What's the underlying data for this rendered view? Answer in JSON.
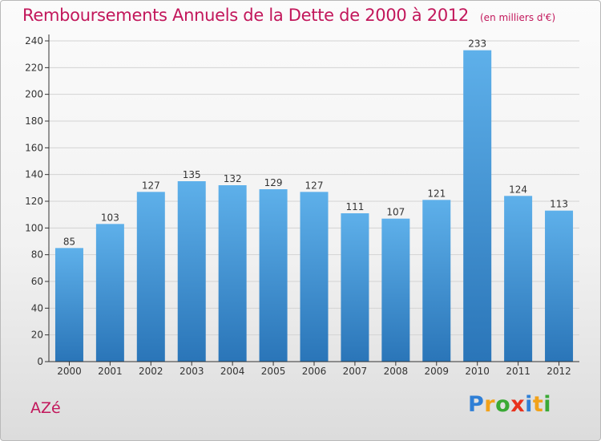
{
  "title": "Remboursements Annuels de la Dette de 2000 à 2012",
  "unit": "(en milliers d'€)",
  "town": "AZé",
  "logo": {
    "letters": [
      {
        "char": "P",
        "color": "#2f7fd6"
      },
      {
        "char": "r",
        "color": "#f2a21a"
      },
      {
        "char": "o",
        "color": "#3aa935"
      },
      {
        "char": "x",
        "color": "#e8321d"
      },
      {
        "char": "i",
        "color": "#2f7fd6"
      },
      {
        "char": "t",
        "color": "#f2a21a"
      },
      {
        "char": "i",
        "color": "#3aa935"
      }
    ]
  },
  "colors": {
    "title": "#c2175b",
    "bar_top": "#5eb0ea",
    "bar_bottom": "#2a75b8",
    "grid": "#d3d3d3",
    "axis": "#333333"
  },
  "chart_data": {
    "type": "bar",
    "title": "Remboursements Annuels de la Dette de 2000 à 2012",
    "subtitle": "(en milliers d'€)",
    "categories": [
      "2000",
      "2001",
      "2002",
      "2003",
      "2004",
      "2005",
      "2006",
      "2007",
      "2008",
      "2009",
      "2010",
      "2011",
      "2012"
    ],
    "values": [
      85,
      103,
      127,
      135,
      132,
      129,
      127,
      111,
      107,
      121,
      233,
      124,
      113
    ],
    "ylim": [
      0,
      240
    ],
    "yticks": [
      0,
      20,
      40,
      60,
      80,
      100,
      120,
      140,
      160,
      180,
      200,
      220,
      240
    ],
    "grid": true,
    "data_labels": true
  }
}
